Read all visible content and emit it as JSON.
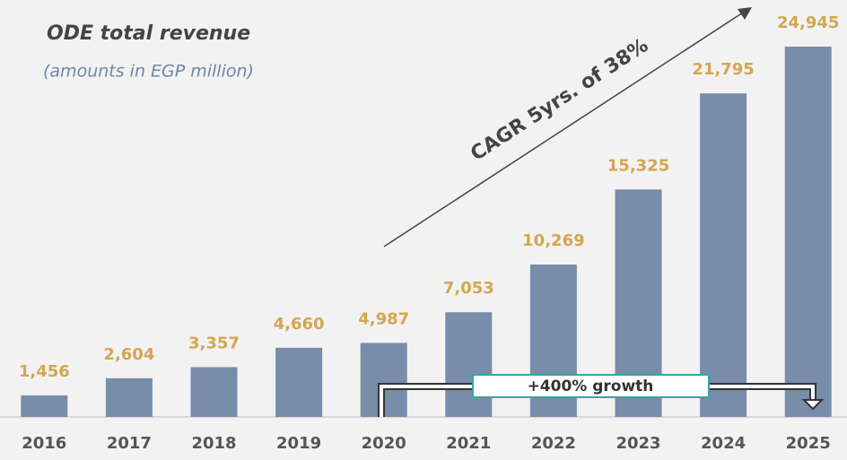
{
  "chart_data": {
    "type": "bar",
    "title": "ODE total revenue",
    "subtitle": "(amounts in EGP million)",
    "categories": [
      "2016",
      "2017",
      "2018",
      "2019",
      "2020",
      "2021",
      "2022",
      "2023",
      "2024",
      "2025"
    ],
    "values": [
      1456,
      2604,
      3357,
      4660,
      4987,
      7053,
      10269,
      15325,
      21795,
      24945
    ],
    "value_labels": [
      "1,456",
      "2,604",
      "3,357",
      "4,660",
      "4,987",
      "7,053",
      "10,269",
      "15,325",
      "21,795",
      "24,945"
    ],
    "color": "#778da9",
    "annotations": [
      "CAGR 5yrs. of 38%",
      "+400% growth"
    ]
  }
}
